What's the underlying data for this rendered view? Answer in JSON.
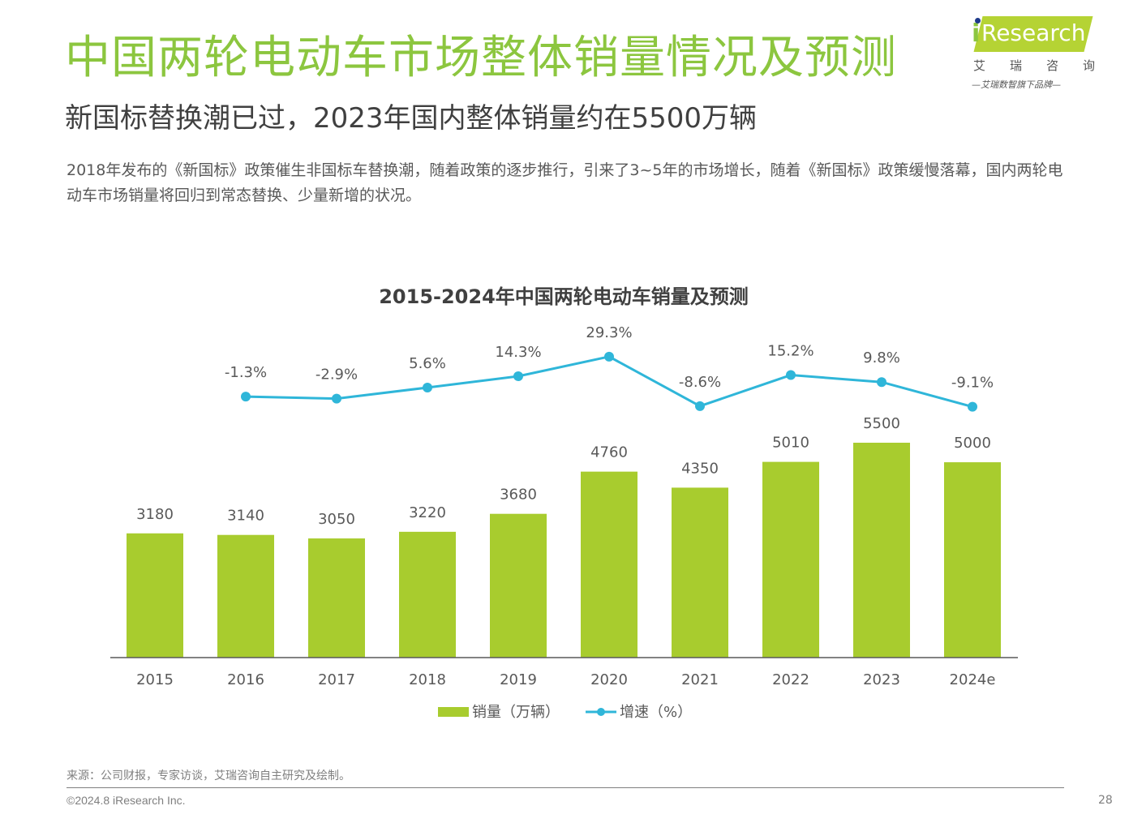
{
  "header": {
    "title": "中国两轮电动车市场整体销量情况及预测",
    "subtitle": "新国标替换潮已过，2023年国内整体销量约在5500万辆",
    "description": "2018年发布的《新国标》政策催生非国标车替换潮，随着政策的逐步推行，引来了3~5年的市场增长，随着《新国标》政策缓慢落幕，国内两轮电动车市场销量将回归到常态替换、少量新增的状况。"
  },
  "logo": {
    "brand": "Research",
    "brand_i": "i",
    "cn_chars": [
      "艾",
      "瑞",
      "咨",
      "询"
    ],
    "tagline": "—艾瑞数智旗下品牌—"
  },
  "colors": {
    "title": "#8cc63f",
    "bar": "#a8cc2e",
    "line": "#2fb6d9",
    "text": "#595959"
  },
  "chart_data": {
    "type": "bar+line",
    "title": "2015-2024年中国两轮电动车销量及预测",
    "categories": [
      "2015",
      "2016",
      "2017",
      "2018",
      "2019",
      "2020",
      "2021",
      "2022",
      "2023",
      "2024e"
    ],
    "series": [
      {
        "name": "销量（万辆）",
        "type": "bar",
        "values": [
          3180,
          3140,
          3050,
          3220,
          3680,
          4760,
          4350,
          5010,
          5500,
          5000
        ],
        "labels": [
          "3180",
          "3140",
          "3050",
          "3220",
          "3680",
          "4760",
          "4350",
          "5010",
          "5500",
          "5000"
        ]
      },
      {
        "name": "增速（%）",
        "type": "line",
        "values": [
          -1.3,
          -2.9,
          5.6,
          14.3,
          29.3,
          -8.6,
          15.2,
          9.8,
          -9.1
        ],
        "x_index": [
          1,
          2,
          3,
          4,
          5,
          6,
          7,
          8,
          9
        ],
        "labels": [
          "-1.3%",
          "-2.9%",
          "5.6%",
          "14.3%",
          "29.3%",
          "-8.6%",
          "15.2%",
          "9.8%",
          "-9.1%"
        ]
      }
    ],
    "legend": [
      "销量（万辆）",
      "增速（%）"
    ],
    "legend_position": "bottom",
    "grid": false,
    "xlabel": "",
    "ylabel": ""
  },
  "footer": {
    "source": "来源：公司财报，专家访谈，艾瑞咨询自主研究及绘制。",
    "copyright": "©2024.8 iResearch Inc.",
    "page": "28"
  }
}
